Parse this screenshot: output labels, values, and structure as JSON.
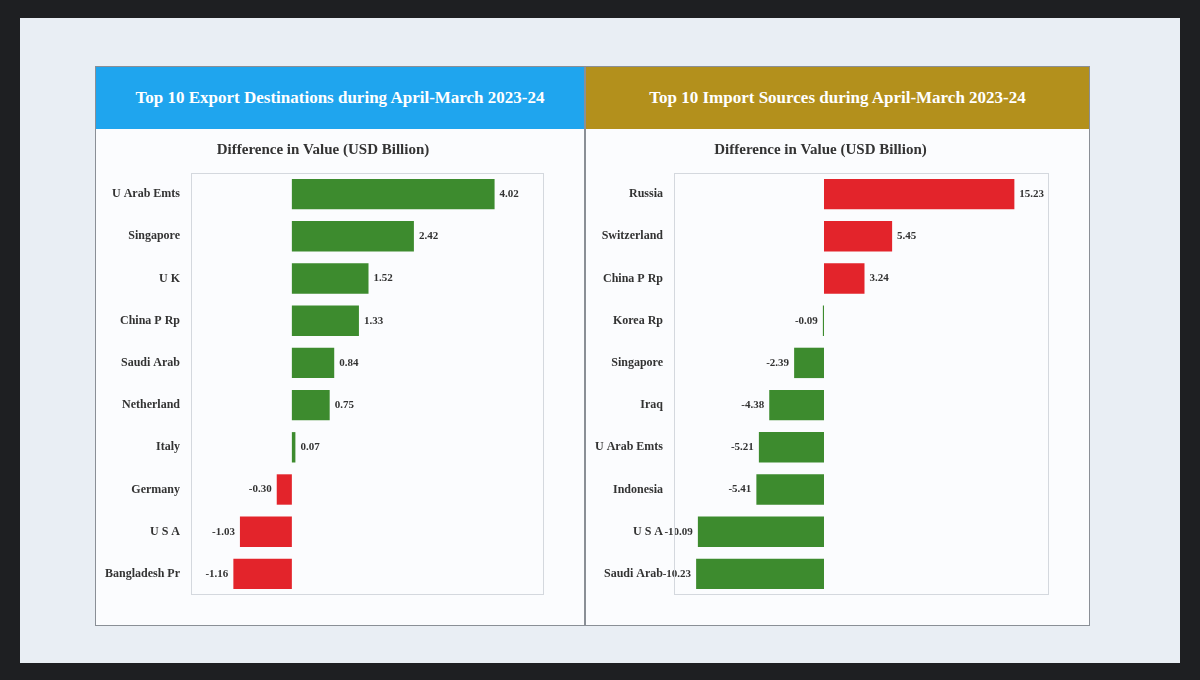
{
  "chart_data": [
    {
      "type": "bar",
      "orientation": "horizontal",
      "title": "Top 10 Export Destinations during April-March 2023-24",
      "subtitle": "Difference in Value (USD Billion)",
      "categories": [
        "U Arab Emts",
        "Singapore",
        "U K",
        "China P Rp",
        "Saudi Arab",
        "Netherland",
        "Italy",
        "Germany",
        "U S A",
        "Bangladesh Pr"
      ],
      "values": [
        4.02,
        2.42,
        1.52,
        1.33,
        0.84,
        0.75,
        0.07,
        -0.3,
        -1.03,
        -1.16
      ],
      "value_labels": [
        "4.02",
        "2.42",
        "1.52",
        "1.33",
        "0.84",
        "0.75",
        "0.07",
        "-0.30",
        "-1.03",
        "-1.16"
      ],
      "colors": [
        "#3d8b2e",
        "#3d8b2e",
        "#3d8b2e",
        "#3d8b2e",
        "#3d8b2e",
        "#3d8b2e",
        "#3d8b2e",
        "#e3242b",
        "#e3242b",
        "#e3242b"
      ],
      "xlim": [
        -2,
        5
      ],
      "data_labels": true,
      "tick_labels": "y",
      "grid": false
    },
    {
      "type": "bar",
      "orientation": "horizontal",
      "title": "Top 10 Import Sources during April-March 2023-24",
      "subtitle": "Difference in Value (USD Billion)",
      "categories": [
        "Russia",
        "Switzerland",
        "China P Rp",
        "Korea Rp",
        "Singapore",
        "Iraq",
        "U Arab Emts",
        "Indonesia",
        "U S A",
        "Saudi Arab"
      ],
      "values": [
        15.23,
        5.45,
        3.24,
        -0.09,
        -2.39,
        -4.38,
        -5.21,
        -5.41,
        -10.09,
        -10.23
      ],
      "value_labels": [
        "15.23",
        "5.45",
        "3.24",
        "-0.09",
        "-2.39",
        "-4.38",
        "-5.21",
        "-5.41",
        "-10.09",
        "-10.23"
      ],
      "colors": [
        "#e3242b",
        "#e3242b",
        "#e3242b",
        "#3d8b2e",
        "#3d8b2e",
        "#3d8b2e",
        "#3d8b2e",
        "#3d8b2e",
        "#3d8b2e",
        "#3d8b2e"
      ],
      "xlim": [
        -12,
        18
      ],
      "data_labels": true,
      "tick_labels": "y",
      "grid": false
    }
  ]
}
